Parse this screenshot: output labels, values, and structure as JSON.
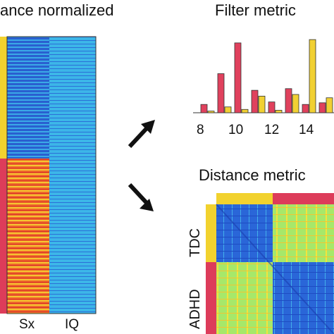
{
  "left_panel": {
    "title": "ance normalized",
    "columns": [
      "Sx",
      "IQ"
    ],
    "group_colors": {
      "top": "#f2d22e",
      "bottom": "#dd3c5a"
    }
  },
  "filter_panel": {
    "title": "Filter metric",
    "chart_data": {
      "type": "bar",
      "xticks": [
        "8",
        "10",
        "12",
        "14"
      ],
      "series": [
        {
          "color": "#e0415d",
          "values": [
            0.1,
            0.47,
            0.84,
            0.27,
            0.13,
            0.29,
            0.1,
            0.12
          ]
        },
        {
          "color": "#f1d033",
          "values": [
            0.02,
            0.07,
            0.04,
            0.2,
            0.03,
            0.22,
            0.88,
            0.18
          ]
        }
      ],
      "colors": {
        "red": "#e0415d",
        "yellow": "#f1d033"
      }
    }
  },
  "distance_panel": {
    "title": "Distance metric",
    "row_labels": [
      "TDC",
      "ADHD"
    ],
    "group_colors": {
      "tdc": "#f2d22e",
      "adhd": "#dd3c5a"
    }
  }
}
